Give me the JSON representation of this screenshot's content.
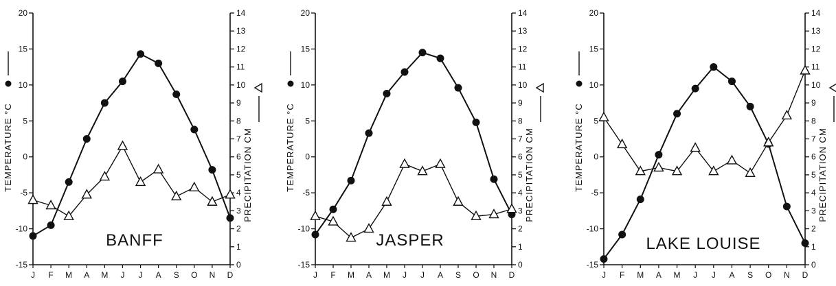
{
  "chart_data": [
    {
      "type": "line",
      "station_label": "BANFF",
      "categories": [
        "J",
        "F",
        "M",
        "A",
        "M",
        "J",
        "J",
        "A",
        "S",
        "O",
        "N",
        "D"
      ],
      "left_axis": {
        "label": "TEMPERATURE °C",
        "ylim": [
          -15,
          20
        ],
        "ticks": [
          -15,
          -10,
          -5,
          0,
          5,
          10,
          15,
          20
        ]
      },
      "right_axis": {
        "label": "PRECIPITATION CM",
        "ylim": [
          0,
          14
        ],
        "ticks": [
          0,
          1,
          2,
          3,
          4,
          5,
          6,
          7,
          8,
          9,
          10,
          11,
          12,
          13,
          14
        ]
      },
      "series": [
        {
          "marker": "filled-circle",
          "axis": "left",
          "values": [
            -11,
            -9.5,
            -3.5,
            2.5,
            7.5,
            10.5,
            14.3,
            13,
            8.7,
            3.8,
            -1.8,
            -8.5
          ]
        },
        {
          "marker": "open-triangle",
          "axis": "right",
          "values": [
            3.6,
            3.3,
            2.7,
            3.9,
            4.9,
            6.6,
            4.6,
            5.3,
            3.8,
            4.3,
            3.5,
            3.9
          ]
        }
      ]
    },
    {
      "type": "line",
      "station_label": "JASPER",
      "categories": [
        "J",
        "F",
        "M",
        "A",
        "M",
        "J",
        "J",
        "A",
        "S",
        "O",
        "N",
        "D"
      ],
      "left_axis": {
        "label": "TEMPERATURE °C",
        "ylim": [
          -15,
          20
        ],
        "ticks": [
          -15,
          -10,
          -5,
          0,
          5,
          10,
          15,
          20
        ]
      },
      "right_axis": {
        "label": "PRECIPITATION CM",
        "ylim": [
          0,
          14
        ],
        "ticks": [
          0,
          1,
          2,
          3,
          4,
          5,
          6,
          7,
          8,
          9,
          10,
          11,
          12,
          13,
          14
        ]
      },
      "series": [
        {
          "marker": "filled-circle",
          "axis": "left",
          "values": [
            -10.8,
            -7.3,
            -3.3,
            3.3,
            8.8,
            11.8,
            14.5,
            13.7,
            9.6,
            4.8,
            -3.1,
            -8
          ]
        },
        {
          "marker": "open-triangle",
          "axis": "right",
          "values": [
            2.7,
            2.4,
            1.5,
            2,
            3.5,
            5.6,
            5.2,
            5.6,
            3.5,
            2.7,
            2.8,
            3.1
          ]
        }
      ]
    },
    {
      "type": "line",
      "station_label": "LAKE LOUISE",
      "categories": [
        "J",
        "F",
        "M",
        "A",
        "M",
        "J",
        "J",
        "A",
        "S",
        "O",
        "N",
        "D"
      ],
      "left_axis": {
        "label": "TEMPERATURE °C",
        "ylim": [
          -15,
          20
        ],
        "ticks": [
          -15,
          -10,
          -5,
          0,
          5,
          10,
          15,
          20
        ]
      },
      "right_axis": {
        "label": "PRECIPITATION CM",
        "ylim": [
          0,
          14
        ],
        "ticks": [
          0,
          1,
          2,
          3,
          4,
          5,
          6,
          7,
          8,
          9,
          10,
          11,
          12,
          13,
          14
        ]
      },
      "series": [
        {
          "marker": "filled-circle",
          "axis": "left",
          "values": [
            -14.2,
            -10.8,
            -5.9,
            0.3,
            6,
            9.5,
            12.5,
            10.5,
            7,
            1.8,
            -6.9,
            -12
          ]
        },
        {
          "marker": "open-triangle",
          "axis": "right",
          "values": [
            8.2,
            6.7,
            5.2,
            5.4,
            5.2,
            6.5,
            5.2,
            5.8,
            5.1,
            6.8,
            8.3,
            10.8
          ]
        }
      ]
    }
  ]
}
